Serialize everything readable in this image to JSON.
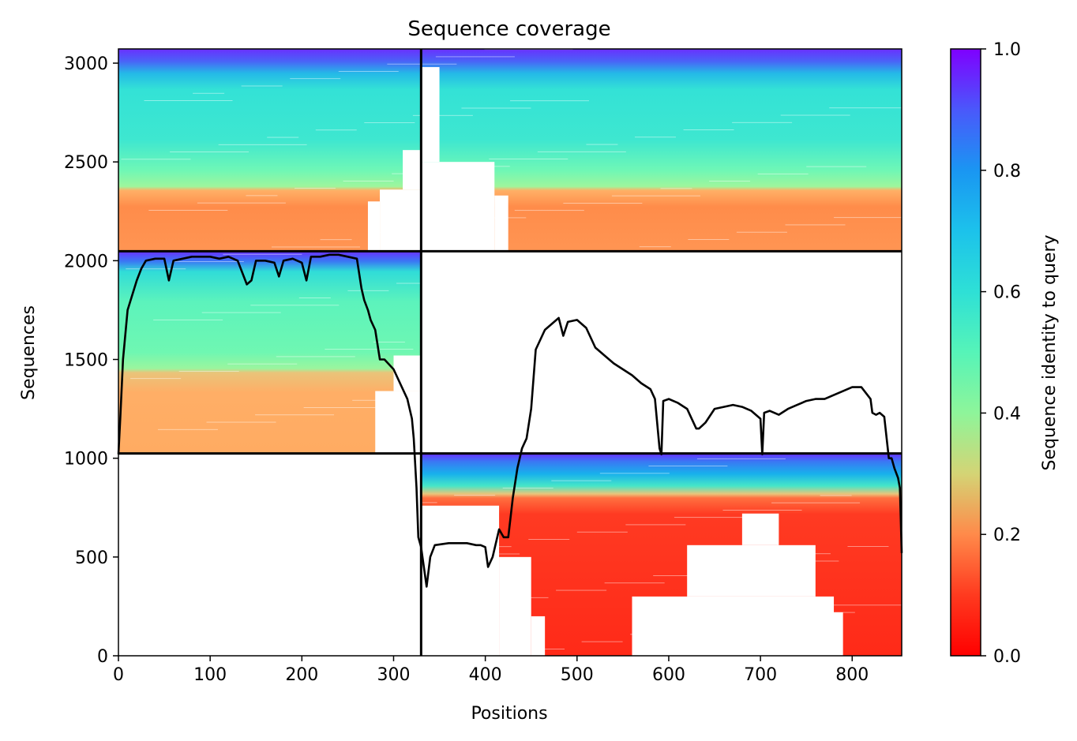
{
  "chart_data": {
    "type": "heatmap",
    "title": "Sequence coverage",
    "xlabel": "Positions",
    "ylabel": "Sequences",
    "xlim": [
      0,
      854
    ],
    "ylim": [
      0,
      3072
    ],
    "x_ticks": [
      "0",
      "100",
      "200",
      "300",
      "400",
      "500",
      "600",
      "700",
      "800"
    ],
    "y_ticks": [
      "0",
      "500",
      "1000",
      "1500",
      "2000",
      "2500",
      "3000"
    ],
    "colorbar": {
      "label": "Sequence identity to query",
      "range": [
        0.0,
        1.0
      ],
      "ticks": [
        "0.0",
        "0.2",
        "0.4",
        "0.6",
        "0.8",
        "1.0"
      ],
      "colormap": "rainbow_r"
    },
    "segment_boundaries": {
      "x": [
        330
      ],
      "y": [
        1024,
        2048
      ]
    },
    "blocks": [
      {
        "x": [
          0,
          330
        ],
        "y": [
          2048,
          3072
        ],
        "identity_top": 1.0,
        "identity_bottom": 0.18,
        "coverage_end": 330
      },
      {
        "x": [
          330,
          854
        ],
        "y": [
          2048,
          3072
        ],
        "identity_top": 1.0,
        "identity_bottom": 0.18,
        "coverage_start": 330
      },
      {
        "x": [
          0,
          330
        ],
        "y": [
          1024,
          2048
        ],
        "identity_top": 1.0,
        "identity_bottom": 0.22,
        "coverage_end": 330
      },
      {
        "x": [
          330,
          854
        ],
        "y": [
          0,
          1024
        ],
        "identity_top": 1.0,
        "identity_bottom": 0.05,
        "coverage_start": 330
      }
    ],
    "coverage_line": {
      "x": [
        0,
        2,
        5,
        10,
        20,
        25,
        30,
        40,
        50,
        55,
        60,
        70,
        80,
        90,
        100,
        110,
        120,
        130,
        140,
        145,
        150,
        160,
        170,
        175,
        180,
        190,
        200,
        205,
        210,
        220,
        230,
        240,
        250,
        260,
        265,
        268,
        272,
        275,
        280,
        285,
        290,
        300,
        310,
        315,
        320,
        322,
        325,
        327,
        330,
        333,
        336,
        340,
        345,
        360,
        380,
        390,
        395,
        400,
        403,
        408,
        415,
        420,
        425,
        430,
        435,
        440,
        445,
        450,
        455,
        465,
        480,
        485,
        490,
        500,
        510,
        520,
        530,
        540,
        550,
        560,
        570,
        580,
        585,
        590,
        592,
        594,
        600,
        610,
        620,
        630,
        633,
        640,
        650,
        660,
        670,
        680,
        690,
        700,
        702,
        704,
        710,
        720,
        730,
        740,
        750,
        760,
        770,
        780,
        790,
        800,
        810,
        820,
        822,
        826,
        830,
        835,
        840,
        843,
        846,
        850,
        852,
        854
      ],
      "y": [
        1020,
        1200,
        1500,
        1750,
        1900,
        1960,
        2000,
        2010,
        2010,
        1900,
        2000,
        2010,
        2020,
        2020,
        2020,
        2010,
        2020,
        2000,
        1880,
        1900,
        2000,
        2000,
        1990,
        1920,
        2000,
        2010,
        1990,
        1900,
        2020,
        2020,
        2030,
        2030,
        2020,
        2010,
        1860,
        1800,
        1750,
        1700,
        1650,
        1500,
        1500,
        1450,
        1350,
        1300,
        1200,
        1100,
        850,
        600,
        550,
        450,
        350,
        500,
        560,
        570,
        570,
        560,
        560,
        550,
        450,
        500,
        640,
        600,
        600,
        800,
        950,
        1050,
        1100,
        1250,
        1550,
        1650,
        1710,
        1620,
        1690,
        1700,
        1660,
        1560,
        1520,
        1480,
        1450,
        1420,
        1380,
        1350,
        1300,
        1050,
        1020,
        1290,
        1300,
        1280,
        1250,
        1150,
        1150,
        1180,
        1250,
        1260,
        1270,
        1260,
        1240,
        1200,
        1020,
        1230,
        1240,
        1220,
        1250,
        1270,
        1290,
        1300,
        1300,
        1320,
        1340,
        1360,
        1360,
        1300,
        1230,
        1220,
        1230,
        1210,
        1000,
        1000,
        950,
        900,
        850,
        520
      ]
    }
  }
}
